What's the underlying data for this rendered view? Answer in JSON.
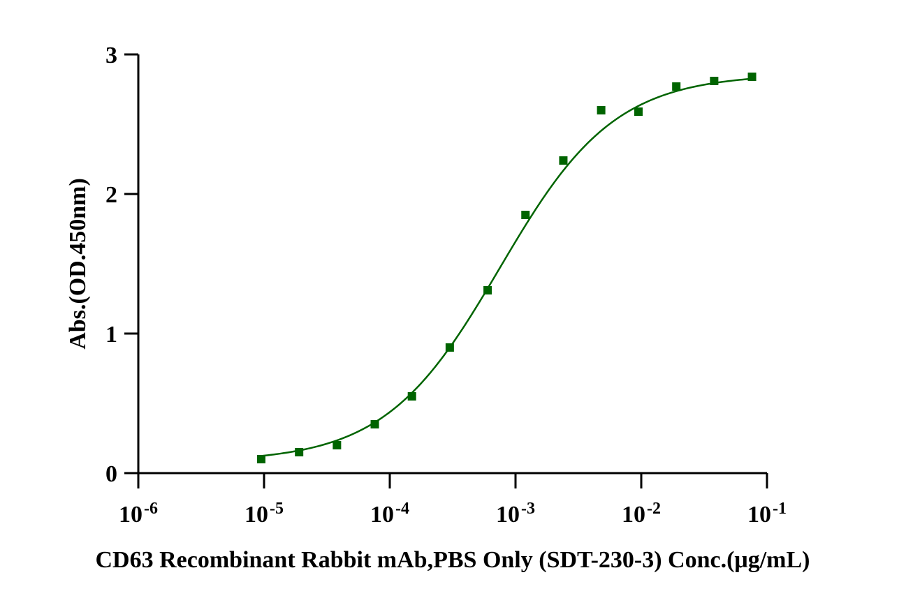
{
  "chart_data": {
    "type": "scatter",
    "title": "",
    "xlabel": "CD63 Recombinant Rabbit mAb,PBS Only (SDT-230-3) Conc.(μg/mL)",
    "ylabel": "Abs.(OD.450nm)",
    "xscale": "log",
    "xlim": [
      1e-06,
      0.1
    ],
    "ylim": [
      0,
      3
    ],
    "x_ticks": [
      {
        "base": "10",
        "exp": "-6"
      },
      {
        "base": "10",
        "exp": "-5"
      },
      {
        "base": "10",
        "exp": "-4"
      },
      {
        "base": "10",
        "exp": "-3"
      },
      {
        "base": "10",
        "exp": "-2"
      },
      {
        "base": "10",
        "exp": "-1"
      }
    ],
    "y_ticks": [
      "0",
      "1",
      "2",
      "3"
    ],
    "grid": false,
    "legend": "none",
    "color": "#006400",
    "marker": "square",
    "fit_curve": true,
    "series": [
      {
        "x": [
          9.5e-06,
          1.9e-05,
          3.8e-05,
          7.6e-05,
          0.00015,
          0.0003,
          0.0006,
          0.0012,
          0.0024,
          0.0048,
          0.0095,
          0.019,
          0.038,
          0.076
        ],
        "y": [
          0.1,
          0.15,
          0.2,
          0.35,
          0.55,
          0.9,
          1.31,
          1.85,
          2.24,
          2.6,
          2.59,
          2.77,
          2.81,
          2.84
        ]
      }
    ]
  }
}
